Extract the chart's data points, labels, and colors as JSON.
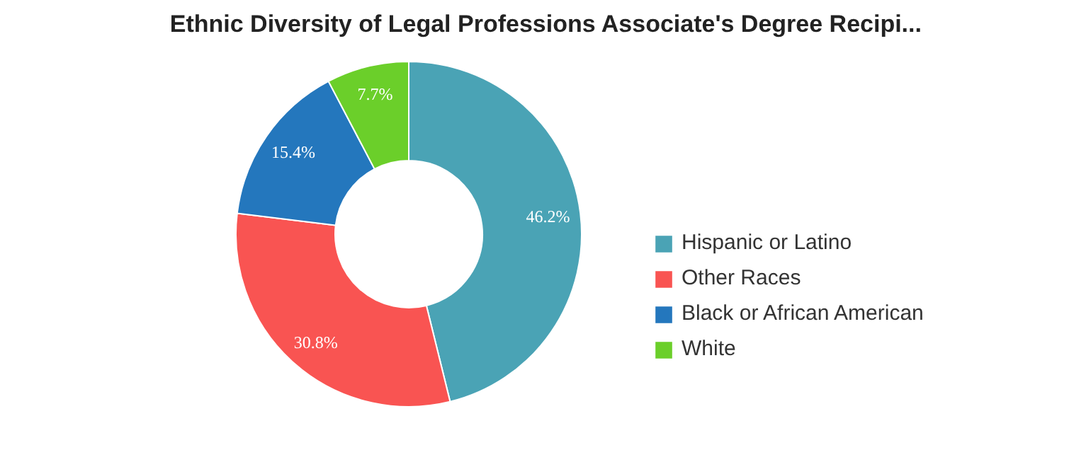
{
  "chart_data": {
    "type": "donut",
    "title": "Ethnic Diversity of Legal Professions Associate's Degree Recipi...",
    "categories": [
      "Hispanic or Latino",
      "Other Races",
      "Black or African American",
      "White"
    ],
    "values": [
      46.2,
      30.8,
      15.4,
      7.7
    ],
    "colors": [
      "#4aa3b5",
      "#f95452",
      "#2477bd",
      "#6bcf2a"
    ],
    "value_labels": [
      "46.2%",
      "30.8%",
      "15.4%",
      "7.7%"
    ],
    "legend": "right"
  }
}
